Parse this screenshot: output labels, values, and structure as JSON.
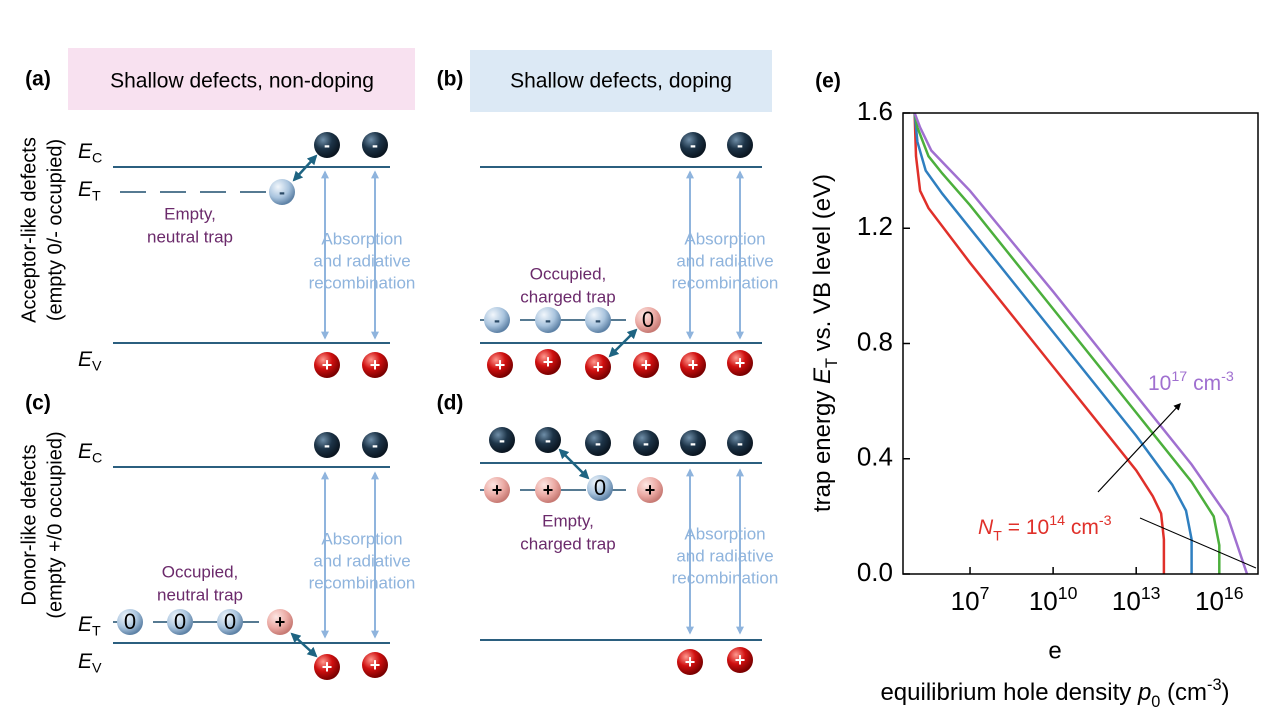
{
  "figure": {
    "panels": [
      {
        "label": "(a)",
        "header": "Shallow defects, non-doping"
      },
      {
        "label": "(b)",
        "header": "Shallow defects, doping"
      },
      {
        "label": "(c)"
      },
      {
        "label": "(d)"
      }
    ],
    "row_labels": [
      [
        "Acceptor-like defects",
        "(empty 0/- occupied)"
      ],
      [
        "Donor-like defects",
        "(empty +/0 occupied)"
      ]
    ],
    "levels": {
      "E": "E",
      "C": "C",
      "T": "T",
      "V": "V"
    },
    "signs": {
      "minus": "-",
      "plus": "+",
      "zero": "0"
    },
    "absorption": [
      "Absorption",
      "and radiative",
      "recombination"
    ],
    "traps": {
      "a": [
        "Empty,",
        "neutral trap"
      ],
      "b": [
        "Occupied,",
        "charged trap"
      ],
      "c": [
        "Occupied,",
        "neutral  trap"
      ],
      "d": [
        "Empty,",
        "charged trap"
      ]
    }
  },
  "chart_data": {
    "type": "line",
    "label": "(e)",
    "ylabel": [
      "trap energy ",
      "E",
      "T",
      " vs. VB level (eV)"
    ],
    "xlabel": [
      "equilibrium hole density ",
      "p",
      "0",
      " (cm",
      "-3",
      ")"
    ],
    "stray_text": "e",
    "xscale": "log",
    "xlim": [
      38000,
      250000000000000000
    ],
    "ylim": [
      0,
      1.6
    ],
    "xticks": [
      {
        "value": 10000000,
        "label": "10",
        "exp": "7"
      },
      {
        "value": 10000000000,
        "label": "10",
        "exp": "10"
      },
      {
        "value": 10000000000000,
        "label": "10",
        "exp": "13"
      },
      {
        "value": 10000000000000000,
        "label": "10",
        "exp": "16"
      }
    ],
    "yticks": [
      {
        "value": 0,
        "label": "0.0"
      },
      0.4,
      0.8,
      1.2,
      1.6
    ],
    "series": [
      {
        "color": "#e0302a",
        "x": [
          100000,
          112000,
          158000,
          316000,
          10000000,
          10000000000,
          1000000000000,
          10000000000000,
          39800000000000,
          79400000000000,
          100000000000000,
          100000000000000
        ],
        "values": [
          1.6,
          1.45,
          1.33,
          1.27,
          1.08,
          0.72,
          0.48,
          0.36,
          0.27,
          0.21,
          0.12,
          0
        ]
      },
      {
        "color": "#2f7fc0",
        "x": [
          100000,
          126000,
          251000,
          1000000,
          10000000,
          10000000000,
          10000000000000,
          200000000000000,
          630000000000000,
          1000000000000000,
          1000000000000000
        ],
        "values": [
          1.6,
          1.5,
          1.4,
          1.32,
          1.2,
          0.84,
          0.48,
          0.31,
          0.22,
          0.12,
          0
        ]
      },
      {
        "color": "#4caf3c",
        "x": [
          100000,
          126000,
          316000,
          1000000,
          10000000,
          10000000000,
          10000000000000,
          1000000000000000,
          6300000000000000,
          10000000000000000,
          10000000000000000
        ],
        "values": [
          1.6,
          1.55,
          1.45,
          1.39,
          1.28,
          0.92,
          0.56,
          0.32,
          0.2,
          0.1,
          0
        ]
      },
      {
        "color": "#a070d0",
        "x": [
          100000,
          158000,
          398000,
          1000000,
          10000000,
          10000000000,
          10000000000000,
          1000000000000000,
          20000000000000000,
          100000000000000000
        ],
        "values": [
          1.6,
          1.55,
          1.47,
          1.43,
          1.33,
          0.98,
          0.62,
          0.38,
          0.2,
          0
        ]
      }
    ],
    "annotations": [
      {
        "parts": [
          "N",
          "T",
          " = 10",
          "14",
          " cm",
          "-3"
        ],
        "color": "#e0302a"
      },
      {
        "parts": [
          "10",
          "17",
          " cm",
          "-3"
        ],
        "color": "#a070d0"
      }
    ]
  }
}
